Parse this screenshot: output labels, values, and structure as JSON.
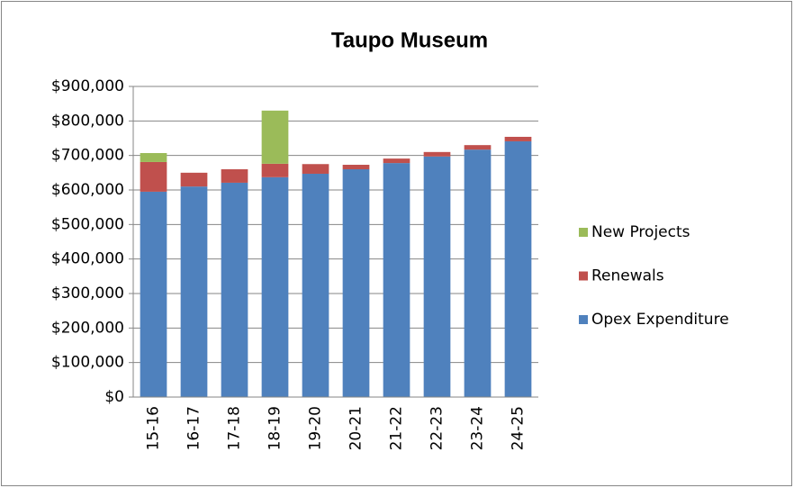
{
  "chart_data": {
    "type": "stacked_bar",
    "title": "Taupo Museum",
    "categories": [
      "15-16",
      "16-17",
      "17-18",
      "18-19",
      "19-20",
      "20-21",
      "21-22",
      "22-23",
      "23-24",
      "24-25"
    ],
    "series": [
      {
        "name": "Opex Expenditure",
        "color": "#4f81bd",
        "values": [
          595000,
          610000,
          621000,
          637000,
          647000,
          660000,
          678000,
          697000,
          717000,
          741000
        ]
      },
      {
        "name": "Renewals",
        "color": "#c0504d",
        "values": [
          86000,
          40000,
          39000,
          39000,
          28000,
          13000,
          13000,
          13000,
          13000,
          13000
        ]
      },
      {
        "name": "New Projects",
        "color": "#9bbb59",
        "values": [
          26000,
          0,
          0,
          154000,
          0,
          0,
          0,
          0,
          0,
          0
        ]
      }
    ],
    "ylim": [
      0,
      900000
    ],
    "yticks": [
      {
        "value": 0,
        "label": "$0"
      },
      {
        "value": 100000,
        "label": "$100,000"
      },
      {
        "value": 200000,
        "label": "$200,000"
      },
      {
        "value": 300000,
        "label": "$300,000"
      },
      {
        "value": 400000,
        "label": "$400,000"
      },
      {
        "value": 500000,
        "label": "$500,000"
      },
      {
        "value": 600000,
        "label": "$600,000"
      },
      {
        "value": 700000,
        "label": "$700,000"
      },
      {
        "value": 800000,
        "label": "$800,000"
      },
      {
        "value": 900000,
        "label": "$900,000"
      }
    ],
    "grid": true,
    "legend": "right"
  }
}
